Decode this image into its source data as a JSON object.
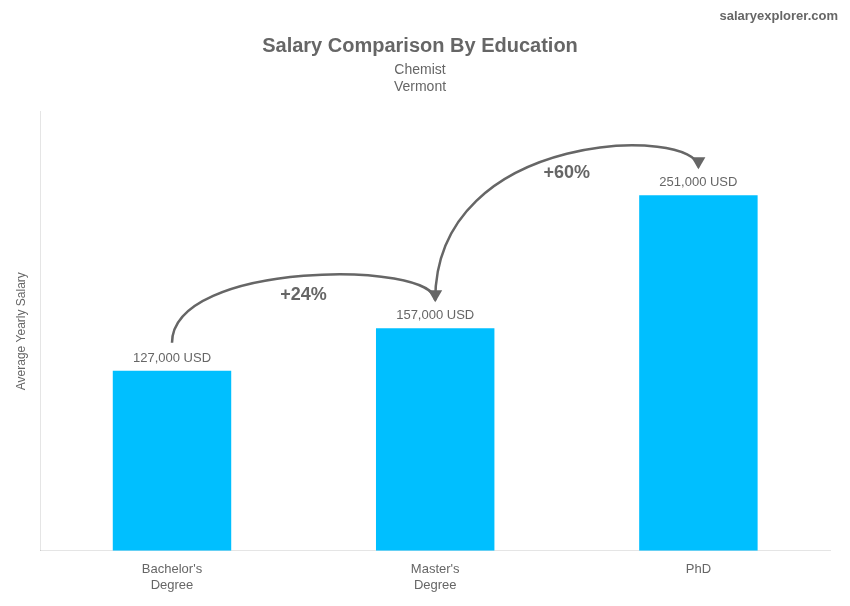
{
  "chart_data": {
    "type": "bar",
    "title": "Salary Comparison By Education",
    "subtitle": [
      "Chemist",
      "Vermont"
    ],
    "ylabel": "Average Yearly Salary",
    "categories": [
      "Bachelor's\nDegree",
      "Master's\nDegree",
      "PhD"
    ],
    "values": [
      127000,
      157000,
      251000
    ],
    "value_labels": [
      "127,000 USD",
      "157,000 USD",
      "251,000 USD"
    ],
    "data_labels": true,
    "color": "#00BFFF",
    "ylim": [
      0,
      310000
    ],
    "grid": false,
    "tick_labels": "x",
    "annotations": [
      {
        "text": "+24%",
        "from": "Bachelor's\nDegree",
        "to": "Master's\nDegree"
      },
      {
        "text": "+60%",
        "from": "Master's\nDegree",
        "to": "PhD"
      },
      {
        "text": "salaryexplorer.com"
      }
    ]
  }
}
